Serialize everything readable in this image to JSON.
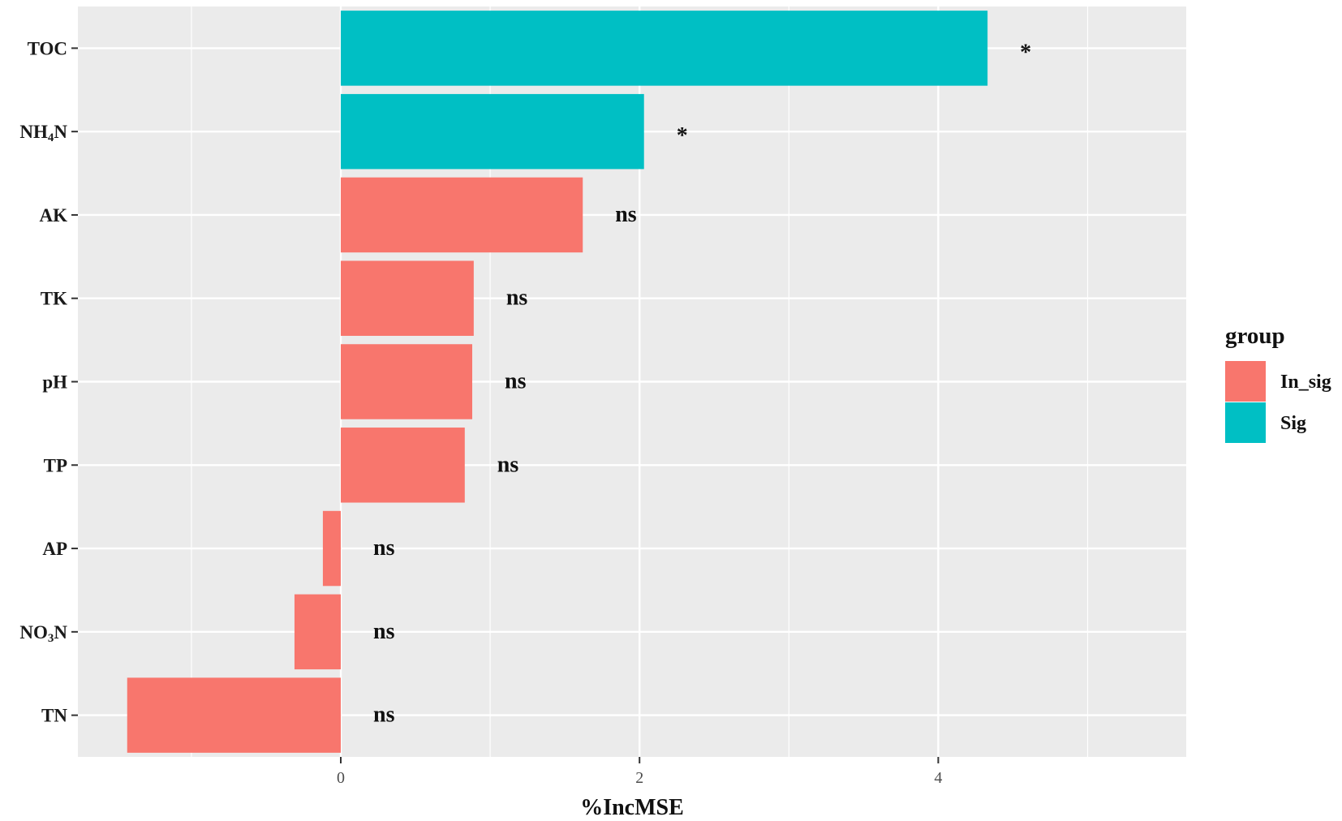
{
  "chart_data": {
    "type": "bar",
    "orientation": "horizontal",
    "title": "",
    "xlabel": "%IncMSE",
    "ylabel": "",
    "xlim": [
      -1.76,
      5.66
    ],
    "x_ticks": [
      "0",
      "2",
      "4"
    ],
    "grid": true,
    "legend": {
      "title": "group",
      "placement": "right",
      "entries": [
        {
          "label": "In_sig",
          "color": "#f8766d"
        },
        {
          "label": "Sig",
          "color": "#00bfc4"
        }
      ]
    },
    "categories": [
      {
        "label": "TOC",
        "text": "TOC",
        "sub": ""
      },
      {
        "label": "NH₄N",
        "text": "NH",
        "sub": "4",
        "post": "N"
      },
      {
        "label": "AK",
        "text": "AK",
        "sub": ""
      },
      {
        "label": "TK",
        "text": "TK",
        "sub": ""
      },
      {
        "label": "pH",
        "text": "pH",
        "sub": ""
      },
      {
        "label": "TP",
        "text": "TP",
        "sub": ""
      },
      {
        "label": "AP",
        "text": "AP",
        "sub": ""
      },
      {
        "label": "NO₃N",
        "text": "NO",
        "sub": "3",
        "post": "N"
      },
      {
        "label": "TN",
        "text": "TN",
        "sub": ""
      }
    ],
    "values": [
      4.33,
      2.03,
      1.62,
      0.89,
      0.88,
      0.83,
      -0.12,
      -0.31,
      -1.43
    ],
    "groups": [
      "Sig",
      "Sig",
      "In_sig",
      "In_sig",
      "In_sig",
      "In_sig",
      "In_sig",
      "In_sig",
      "In_sig"
    ],
    "significance": [
      "*",
      "*",
      "ns",
      "ns",
      "ns",
      "ns",
      "ns",
      "ns",
      "ns"
    ],
    "colors": {
      "In_sig": "#f8766d",
      "Sig": "#00bfc4",
      "panel": "#ebebeb",
      "grid": "#ffffff"
    }
  }
}
